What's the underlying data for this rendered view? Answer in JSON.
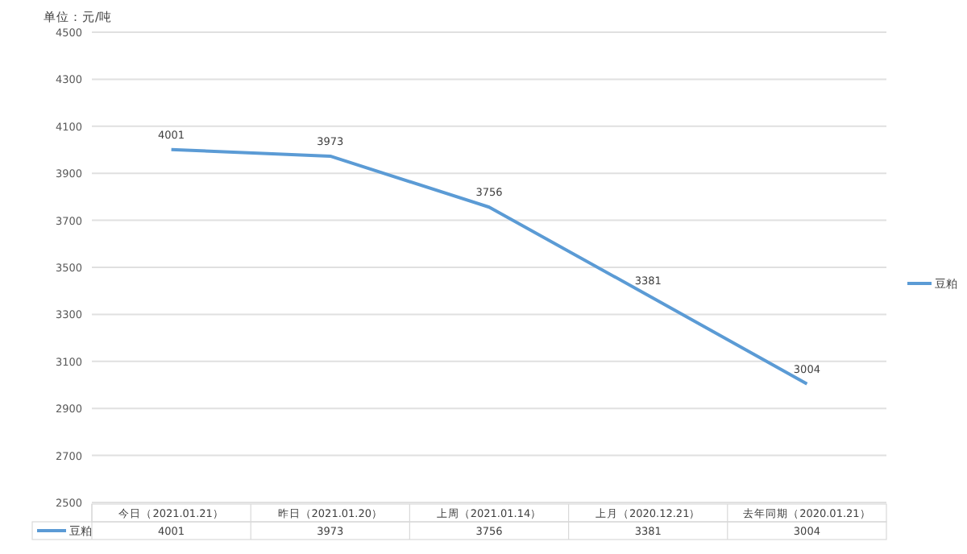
{
  "chart_data": {
    "type": "line",
    "ylabel": "单位：元/吨",
    "categories": [
      "今日（2021.01.21）",
      "昨日（2021.01.20）",
      "上周（2021.01.14）",
      "上月（2020.12.21）",
      "去年同期（2020.01.21）"
    ],
    "series": [
      {
        "name": "豆粕",
        "color": "#5b9bd5",
        "values": [
          4001,
          3973,
          3756,
          3381,
          3004
        ]
      }
    ],
    "annotations": [
      {
        "text": "4001",
        "x": "今日（2021.01.21）",
        "y": 4001
      },
      {
        "text": "3973",
        "x": "昨日（2021.01.20）",
        "y": 3973
      },
      {
        "text": "3756",
        "x": "上周（2021.01.14）",
        "y": 3756
      },
      {
        "text": "3381",
        "x": "上月（2020.12.21）",
        "y": 3381
      },
      {
        "text": "3004",
        "x": "去年同期（2020.01.21）",
        "y": 3004
      }
    ],
    "ylim": [
      2500,
      4500
    ],
    "yticks": [
      2500,
      2700,
      2900,
      3100,
      3300,
      3500,
      3700,
      3900,
      4100,
      4300,
      4500
    ],
    "grid": "y",
    "legend": "right",
    "data_labels": true
  }
}
